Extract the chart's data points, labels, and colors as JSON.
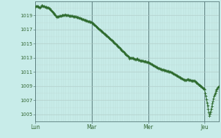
{
  "background_color": "#c8ece9",
  "plot_bg_color": "#c8ece9",
  "line_color": "#2d6a2d",
  "marker_color": "#2d6a2d",
  "ylim": [
    1004.0,
    1021.0
  ],
  "yticks": [
    1005,
    1007,
    1009,
    1011,
    1013,
    1015,
    1017,
    1019
  ],
  "xtick_labels": [
    "Lun",
    "Mar",
    "Mer",
    "Jeu"
  ],
  "xtick_positions": [
    0,
    96,
    192,
    288
  ],
  "total_points": 313
}
